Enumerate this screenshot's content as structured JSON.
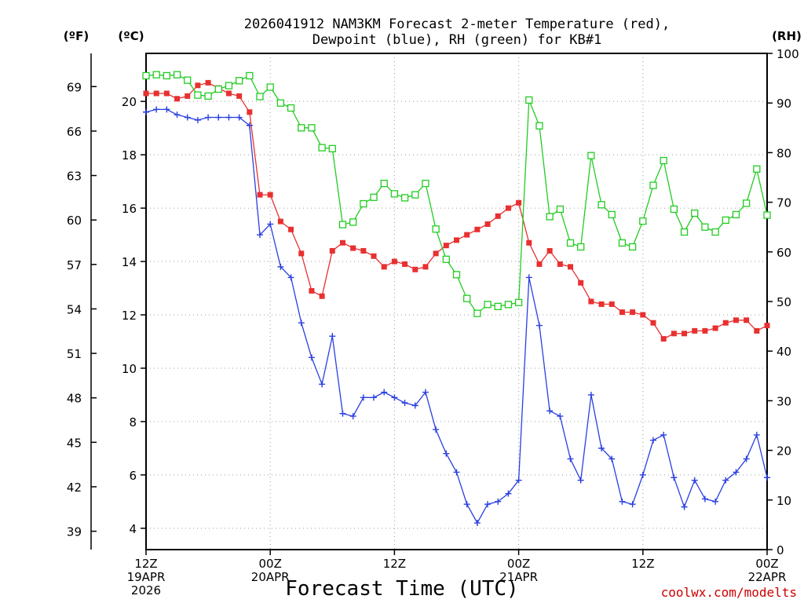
{
  "chart_data": {
    "type": "line",
    "title_line1": "2026041912 NAM3KM Forecast 2-meter Temperature (red),",
    "title_line2": "Dewpoint (blue), RH (green) for KB#1",
    "xlabel": "Forecast Time (UTC)",
    "credit": "coolwx.com/modelts",
    "credit_color": "#cc0000",
    "units": {
      "fahrenheit": "(ºF)",
      "celsius": "(ºC)",
      "rh": "(RH)"
    },
    "x_ticks": [
      {
        "hour": 0,
        "lines": [
          "12Z",
          "19APR",
          "2026"
        ]
      },
      {
        "hour": 12,
        "lines": [
          "00Z",
          "20APR"
        ]
      },
      {
        "hour": 24,
        "lines": [
          "12Z"
        ]
      },
      {
        "hour": 36,
        "lines": [
          "00Z",
          "21APR"
        ]
      },
      {
        "hour": 48,
        "lines": [
          "12Z"
        ]
      },
      {
        "hour": 60,
        "lines": [
          "00Z",
          "22APR"
        ]
      }
    ],
    "xlim": [
      0,
      60
    ],
    "ylim_celsius": [
      3.2,
      21.8
    ],
    "celsius_ticks": [
      "4",
      "6",
      "8",
      "10",
      "12",
      "14",
      "16",
      "18",
      "20"
    ],
    "fahrenheit_ticks": [
      "39",
      "42",
      "45",
      "48",
      "51",
      "54",
      "57",
      "60",
      "63",
      "66",
      "69"
    ],
    "ylim_rh": [
      0,
      100
    ],
    "rh_ticks": [
      "0",
      "10",
      "20",
      "30",
      "40",
      "50",
      "60",
      "70",
      "80",
      "90",
      "100"
    ],
    "x_hours": [
      0,
      1,
      2,
      3,
      4,
      5,
      6,
      7,
      8,
      9,
      10,
      11,
      12,
      13,
      14,
      15,
      16,
      17,
      18,
      19,
      20,
      21,
      22,
      23,
      24,
      25,
      26,
      27,
      28,
      29,
      30,
      31,
      32,
      33,
      34,
      35,
      36,
      37,
      38,
      39,
      40,
      41,
      42,
      43,
      44,
      45,
      46,
      47,
      48,
      49,
      50,
      51,
      52,
      53,
      54,
      55,
      56,
      57,
      58,
      59,
      60
    ],
    "series": [
      {
        "name": "Temperature",
        "color": "#e83030",
        "marker": "filled-square",
        "axis": "celsius",
        "values": [
          20.3,
          20.3,
          20.3,
          20.1,
          20.2,
          20.6,
          20.7,
          20.5,
          20.3,
          20.2,
          19.6,
          16.5,
          16.5,
          15.5,
          15.2,
          14.3,
          12.9,
          12.7,
          14.4,
          14.7,
          14.5,
          14.4,
          14.2,
          13.8,
          14.0,
          13.9,
          13.7,
          13.8,
          14.3,
          14.6,
          14.8,
          15.0,
          15.2,
          15.4,
          15.7,
          16.0,
          16.2,
          14.7,
          13.9,
          14.4,
          13.9,
          13.8,
          13.2,
          12.5,
          12.4,
          12.4,
          12.1,
          12.1,
          12.0,
          11.7,
          11.1,
          11.3,
          11.3,
          11.4,
          11.4,
          11.5,
          11.7,
          11.8,
          11.8,
          11.4,
          11.6
        ]
      },
      {
        "name": "Dewpoint",
        "color": "#2a3fe0",
        "marker": "plus",
        "axis": "celsius",
        "values": [
          19.6,
          19.7,
          19.7,
          19.5,
          19.4,
          19.3,
          19.4,
          19.4,
          19.4,
          19.4,
          19.1,
          15.0,
          15.4,
          13.8,
          13.4,
          11.7,
          10.4,
          9.4,
          11.2,
          8.3,
          8.2,
          8.9,
          8.9,
          9.1,
          8.9,
          8.7,
          8.6,
          9.1,
          7.7,
          6.8,
          6.1,
          4.9,
          4.2,
          4.9,
          5.0,
          5.3,
          5.8,
          13.4,
          11.6,
          8.4,
          8.2,
          6.6,
          5.8,
          9.0,
          7.0,
          6.6,
          5.0,
          4.9,
          6.0,
          7.3,
          7.5,
          5.9,
          4.8,
          5.8,
          5.1,
          5.0,
          5.8,
          6.1,
          6.6,
          7.5,
          5.9
        ]
      },
      {
        "name": "RH",
        "color": "#22cc22",
        "marker": "open-square",
        "axis": "rh",
        "values": [
          95.5,
          95.7,
          95.5,
          95.7,
          94.6,
          91.6,
          91.4,
          92.8,
          93.5,
          94.5,
          95.5,
          91.3,
          93.2,
          90.0,
          89.0,
          85.0,
          85.0,
          81.0,
          80.8,
          65.5,
          66.0,
          69.7,
          71.0,
          73.8,
          71.7,
          70.9,
          71.5,
          73.8,
          64.6,
          58.5,
          55.4,
          50.6,
          47.6,
          49.4,
          49.0,
          49.4,
          49.8,
          90.6,
          85.4,
          67.1,
          68.6,
          61.8,
          61.0,
          79.4,
          69.5,
          67.5,
          61.8,
          61.0,
          66.2,
          73.4,
          78.4,
          68.6,
          64.0,
          67.8,
          65.0,
          64.0,
          66.4,
          67.5,
          69.8,
          76.7,
          67.4
        ]
      }
    ]
  }
}
